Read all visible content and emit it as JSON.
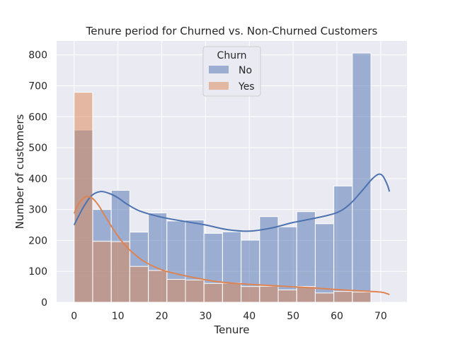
{
  "chart_data": {
    "type": "histogram",
    "title": "Tenure period for Churned vs. Non-Churned Customers",
    "xlabel": "Tenure",
    "ylabel": "Number of customers",
    "xlim": [
      -4,
      76
    ],
    "ylim": [
      0,
      845
    ],
    "x_ticks": [
      0,
      10,
      20,
      30,
      40,
      50,
      60,
      70
    ],
    "y_ticks": [
      0,
      100,
      200,
      300,
      400,
      500,
      600,
      700,
      800
    ],
    "grid": true,
    "legend": {
      "title": "Churn",
      "placement": "top-center"
    },
    "bin_edges": [
      0,
      4.235,
      8.471,
      12.706,
      16.941,
      21.176,
      25.412,
      29.647,
      33.882,
      38.118,
      42.353,
      46.588,
      50.824,
      55.059,
      59.294,
      63.529,
      67.765,
      72
    ],
    "series": [
      {
        "name": "No",
        "color": "#4c72b0",
        "counts": [
          557,
          300,
          362,
          227,
          289,
          263,
          266,
          223,
          228,
          201,
          277,
          244,
          293,
          254,
          376,
          806
        ],
        "kde": [
          [
            0,
            250
          ],
          [
            2,
            305
          ],
          [
            4,
            345
          ],
          [
            6,
            358
          ],
          [
            8,
            352
          ],
          [
            10,
            338
          ],
          [
            12,
            318
          ],
          [
            15,
            295
          ],
          [
            20,
            275
          ],
          [
            25,
            262
          ],
          [
            30,
            250
          ],
          [
            35,
            235
          ],
          [
            40,
            230
          ],
          [
            45,
            240
          ],
          [
            50,
            258
          ],
          [
            55,
            272
          ],
          [
            60,
            290
          ],
          [
            63,
            318
          ],
          [
            66,
            365
          ],
          [
            68,
            398
          ],
          [
            69.5,
            414
          ],
          [
            70.5,
            408
          ],
          [
            71.5,
            380
          ],
          [
            72,
            358
          ]
        ]
      },
      {
        "name": "Yes",
        "color": "#dd8452",
        "counts": [
          679,
          197,
          196,
          116,
          103,
          74,
          72,
          61,
          62,
          51,
          52,
          40,
          51,
          30,
          35,
          33
        ],
        "kde": [
          [
            0,
            287
          ],
          [
            1,
            318
          ],
          [
            2.5,
            340
          ],
          [
            4,
            338
          ],
          [
            5.5,
            315
          ],
          [
            7,
            280
          ],
          [
            9,
            235
          ],
          [
            11,
            195
          ],
          [
            13,
            165
          ],
          [
            16,
            132
          ],
          [
            20,
            105
          ],
          [
            24,
            90
          ],
          [
            28,
            78
          ],
          [
            32,
            68
          ],
          [
            36,
            62
          ],
          [
            40,
            58
          ],
          [
            45,
            54
          ],
          [
            50,
            50
          ],
          [
            55,
            46
          ],
          [
            60,
            41
          ],
          [
            65,
            37
          ],
          [
            70,
            33
          ],
          [
            72,
            25
          ]
        ]
      }
    ]
  }
}
